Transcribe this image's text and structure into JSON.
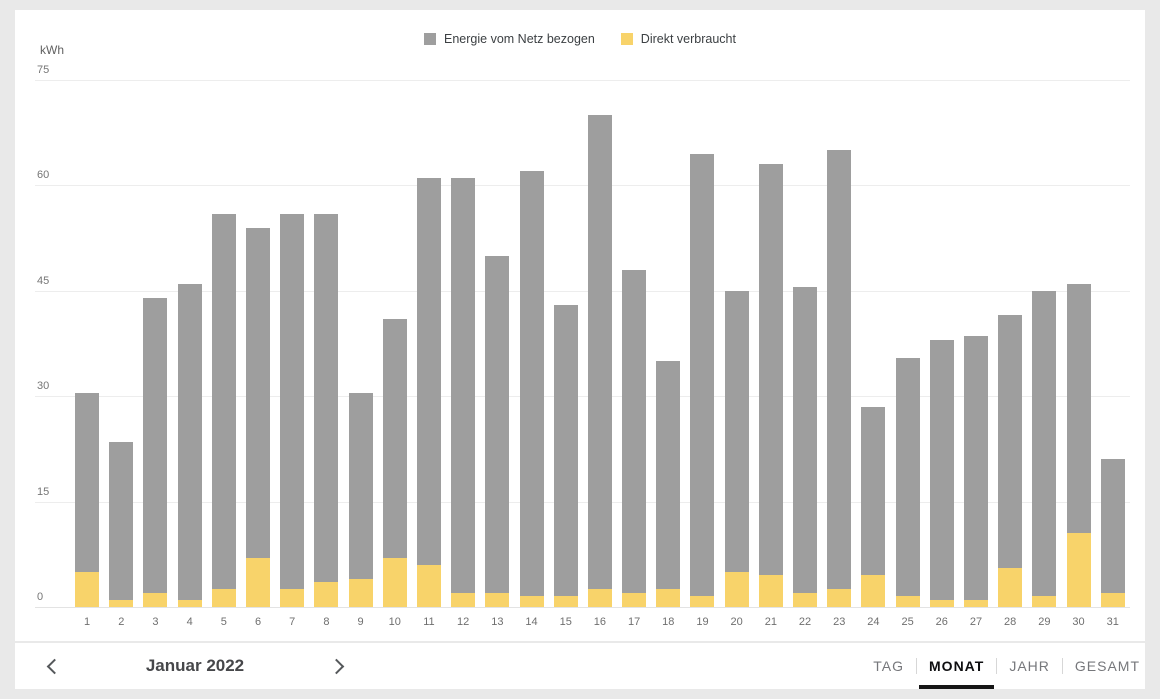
{
  "colors": {
    "page_background": "#e9e9e9",
    "card_background": "#ffffff",
    "bar_gray": "#9e9e9e",
    "bar_yellow": "#f8d36a",
    "active_tab_underline": "#161616"
  },
  "legend": {
    "items": [
      {
        "label": "Energie vom Netz bezogen",
        "color": "#9e9e9e"
      },
      {
        "label": "Direkt verbraucht",
        "color": "#f8d36a"
      }
    ]
  },
  "chart_data": {
    "type": "bar",
    "stacked": true,
    "title": "",
    "xlabel": "",
    "ylabel": "kWh",
    "ylim": [
      0,
      75
    ],
    "yticks": [
      75,
      60,
      45,
      30,
      15,
      0
    ],
    "grid": true,
    "legend_position": "top",
    "categories": [
      1,
      2,
      3,
      4,
      5,
      6,
      7,
      8,
      9,
      10,
      11,
      12,
      13,
      14,
      15,
      16,
      17,
      18,
      19,
      20,
      21,
      22,
      23,
      24,
      25,
      26,
      27,
      28,
      29,
      30,
      31
    ],
    "series": [
      {
        "name": "Energie vom Netz bezogen",
        "color": "#9e9e9e",
        "stack_position": "top",
        "values": [
          25.5,
          22.5,
          42,
          45,
          53.5,
          47,
          53.5,
          52.5,
          26.5,
          34,
          55,
          59,
          48,
          60.5,
          41.5,
          67.5,
          46,
          32.5,
          63,
          40,
          58.5,
          43.5,
          62.5,
          24,
          34,
          37,
          37.5,
          36,
          43.5,
          35.5,
          19
        ]
      },
      {
        "name": "Direkt verbraucht",
        "color": "#f8d36a",
        "stack_position": "bottom",
        "values": [
          5,
          1,
          2,
          1,
          2.5,
          7,
          2.5,
          3.5,
          4,
          7,
          6,
          2,
          2,
          1.5,
          1.5,
          2.5,
          2,
          2.5,
          1.5,
          5,
          4.5,
          2,
          2.5,
          4.5,
          1.5,
          1,
          1,
          5.5,
          1.5,
          10.5,
          2
        ]
      }
    ]
  },
  "nav": {
    "month_label": "Januar 2022",
    "prev_icon": "chevron-left",
    "next_icon": "chevron-right"
  },
  "tabs": [
    {
      "label": "TAG",
      "active": false
    },
    {
      "label": "MONAT",
      "active": true
    },
    {
      "label": "JAHR",
      "active": false
    },
    {
      "label": "GESAMT",
      "active": false
    }
  ]
}
